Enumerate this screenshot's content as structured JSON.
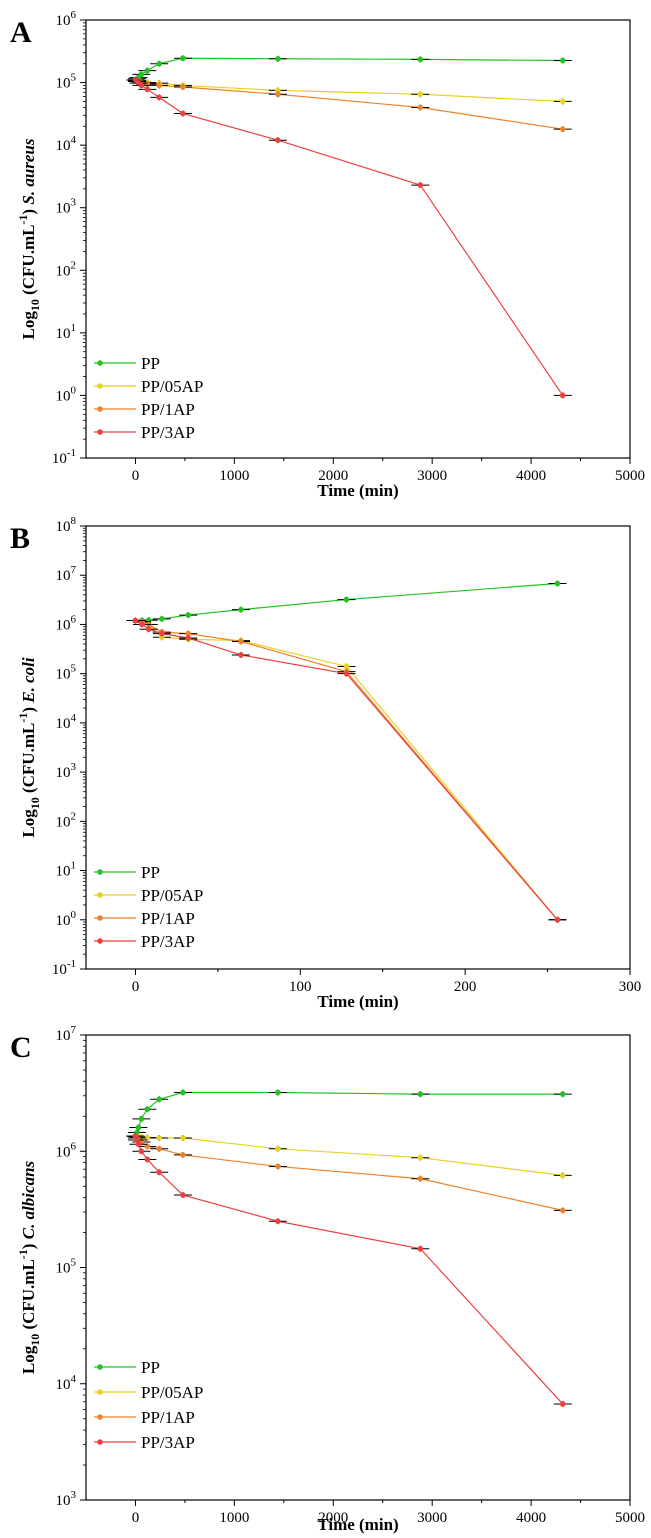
{
  "chart_data": [
    {
      "type": "line",
      "panel_label": "A",
      "xlabel": "Time (min)",
      "ylabel_prefix": "Log",
      "ylabel_sub": "10",
      "ylabel_mid": " (CFU.mL",
      "ylabel_sup": "-1",
      "ylabel_close": ") ",
      "ylabel_organism": "S. aureus",
      "yscale": "log",
      "xlim": [
        -500,
        5000
      ],
      "xticks": [
        0,
        1000,
        2000,
        3000,
        4000,
        5000
      ],
      "ylim_exp": [
        -1,
        6
      ],
      "grid": false,
      "legend_position": "bottom-left",
      "series": [
        {
          "name": "PP",
          "color": "#21c521",
          "x": [
            0,
            15,
            30,
            60,
            120,
            240,
            480,
            1440,
            2880,
            4320
          ],
          "y": [
            110000,
            115000,
            120000,
            135000,
            155000,
            200000,
            245000,
            240000,
            235000,
            225000
          ]
        },
        {
          "name": "PP/05AP",
          "color": "#e6d220",
          "x": [
            0,
            15,
            30,
            60,
            120,
            240,
            480,
            1440,
            2880,
            4320
          ],
          "y": [
            110000,
            108000,
            106000,
            104000,
            100000,
            98000,
            90000,
            75000,
            65000,
            50000
          ]
        },
        {
          "name": "PP/1AP",
          "color": "#f0822a",
          "x": [
            0,
            15,
            30,
            60,
            120,
            240,
            480,
            1440,
            2880,
            4320
          ],
          "y": [
            110000,
            107000,
            104000,
            100000,
            95000,
            90000,
            85000,
            65000,
            40000,
            18000
          ]
        },
        {
          "name": "PP/3AP",
          "color": "#ee4040",
          "x": [
            0,
            15,
            30,
            60,
            120,
            240,
            480,
            1440,
            2880,
            4320
          ],
          "y": [
            110000,
            104000,
            98000,
            90000,
            78000,
            58000,
            32000,
            12000,
            2300,
            1
          ]
        }
      ]
    },
    {
      "type": "line",
      "panel_label": "B",
      "xlabel": "Time (min)",
      "ylabel_prefix": "Log",
      "ylabel_sub": "10",
      "ylabel_mid": " (CFU.mL",
      "ylabel_sup": "-1",
      "ylabel_close": ") ",
      "ylabel_organism": "E. coli",
      "yscale": "log",
      "xlim": [
        -30,
        300
      ],
      "xticks": [
        0,
        100,
        200,
        300
      ],
      "ylim_exp": [
        -1,
        8
      ],
      "grid": false,
      "legend_position": "bottom-left",
      "series": [
        {
          "name": "PP",
          "color": "#21c521",
          "x": [
            0,
            4,
            8,
            16,
            32,
            64,
            128,
            256
          ],
          "y": [
            1200000,
            1210000,
            1220000,
            1300000,
            1550000,
            2000000,
            3200000,
            6800000
          ]
        },
        {
          "name": "PP/05AP",
          "color": "#e6d220",
          "x": [
            0,
            4,
            8,
            16,
            32,
            64,
            128,
            256
          ],
          "y": [
            1200000,
            1100000,
            1000000,
            550000,
            500000,
            470000,
            140000,
            1
          ]
        },
        {
          "name": "PP/1AP",
          "color": "#f0822a",
          "x": [
            0,
            4,
            8,
            16,
            32,
            64,
            128,
            256
          ],
          "y": [
            1200000,
            1150000,
            1000000,
            700000,
            650000,
            450000,
            110000,
            1
          ]
        },
        {
          "name": "PP/3AP",
          "color": "#ee4040",
          "x": [
            0,
            4,
            8,
            16,
            32,
            64,
            128,
            256
          ],
          "y": [
            1200000,
            1000000,
            800000,
            650000,
            530000,
            240000,
            100000,
            1
          ]
        }
      ]
    },
    {
      "type": "line",
      "panel_label": "C",
      "xlabel": "Time (min)",
      "ylabel_prefix": "Log",
      "ylabel_sub": "10",
      "ylabel_mid": " (CFU.mL",
      "ylabel_sup": "-1",
      "ylabel_close": ") ",
      "ylabel_organism": "C. albicans",
      "yscale": "log",
      "xlim": [
        -500,
        5000
      ],
      "xticks": [
        0,
        1000,
        2000,
        3000,
        4000,
        5000
      ],
      "ylim_exp": [
        3,
        7
      ],
      "grid": false,
      "legend_position": "bottom-left",
      "series": [
        {
          "name": "PP",
          "color": "#21c521",
          "x": [
            0,
            15,
            30,
            60,
            120,
            240,
            480,
            1440,
            2880,
            4320
          ],
          "y": [
            1350000,
            1450000,
            1600000,
            1900000,
            2300000,
            2800000,
            3200000,
            3200000,
            3100000,
            3100000
          ]
        },
        {
          "name": "PP/05AP",
          "color": "#e6d220",
          "x": [
            0,
            15,
            30,
            60,
            120,
            240,
            480,
            1440,
            2880,
            4320
          ],
          "y": [
            1350000,
            1340000,
            1330000,
            1320000,
            1310000,
            1300000,
            1300000,
            1050000,
            880000,
            620000
          ]
        },
        {
          "name": "PP/1AP",
          "color": "#f0822a",
          "x": [
            0,
            15,
            30,
            60,
            120,
            240,
            480,
            1440,
            2880,
            4320
          ],
          "y": [
            1350000,
            1300000,
            1250000,
            1200000,
            1100000,
            1050000,
            930000,
            740000,
            580000,
            310000
          ]
        },
        {
          "name": "PP/3AP",
          "color": "#ee4040",
          "x": [
            0,
            15,
            30,
            60,
            120,
            240,
            480,
            1440,
            2880,
            4320
          ],
          "y": [
            1350000,
            1250000,
            1150000,
            1000000,
            850000,
            660000,
            420000,
            250000,
            145000,
            6700
          ]
        }
      ]
    }
  ]
}
